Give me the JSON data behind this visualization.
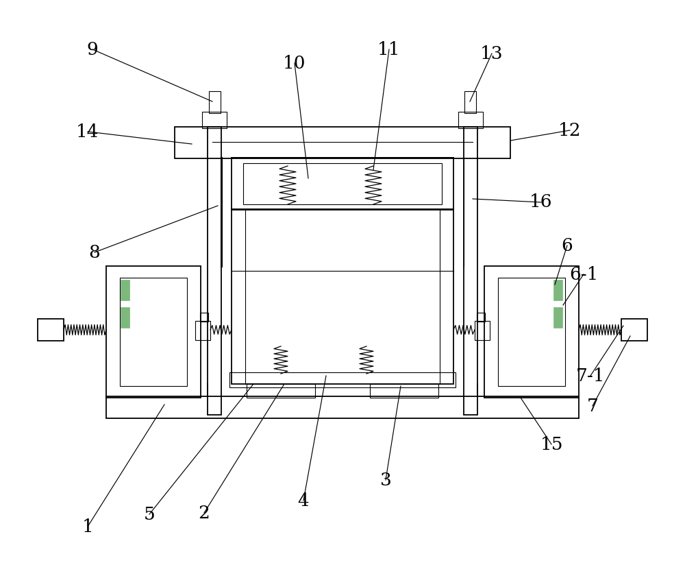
{
  "bg_color": "#ffffff",
  "figsize": [
    10.0,
    8.24
  ],
  "dpi": 100
}
